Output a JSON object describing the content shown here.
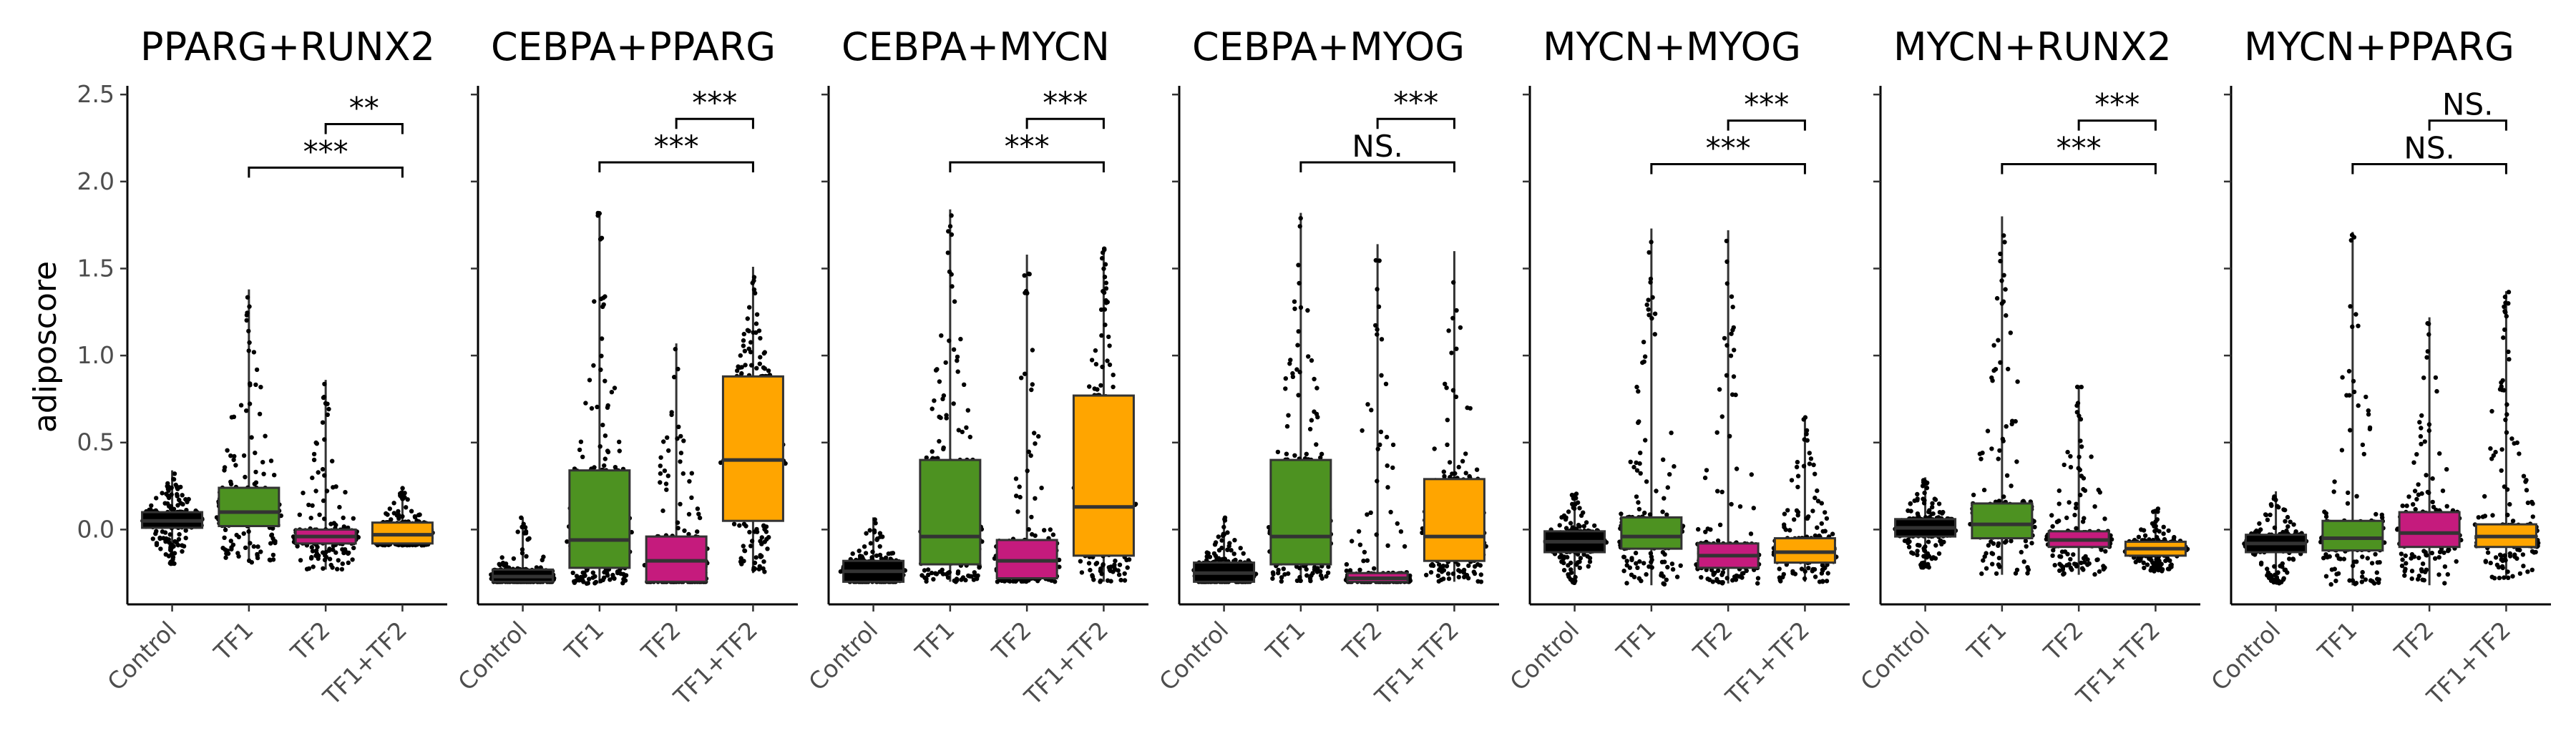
{
  "chart_data": {
    "type": "box",
    "ylabel": "adiposcore",
    "ylim": [
      -0.43,
      2.55
    ],
    "yticks": [
      "0.0",
      "0.5",
      "1.0",
      "1.5",
      "2.0",
      "2.5"
    ],
    "ytick_values": [
      0.0,
      0.5,
      1.0,
      1.5,
      2.0,
      2.5
    ],
    "categories": [
      "Control",
      "TF1",
      "TF2",
      "TF1+TF2"
    ],
    "colors": {
      "Control": "#000000",
      "TF1": "#4d9221",
      "TF2": "#c51b7d",
      "TF1+TF2": "#ffa500"
    },
    "panels": [
      {
        "title": "PPARG+RUNX2",
        "boxes": [
          {
            "category": "Control",
            "q1": 0.01,
            "median": 0.05,
            "q3": 0.1,
            "min": -0.2,
            "max": 0.34
          },
          {
            "category": "TF1",
            "q1": 0.02,
            "median": 0.1,
            "q3": 0.24,
            "min": -0.19,
            "max": 1.38
          },
          {
            "category": "TF2",
            "q1": -0.08,
            "median": -0.04,
            "q3": 0.0,
            "min": -0.23,
            "max": 0.86
          },
          {
            "category": "TF1+TF2",
            "q1": -0.08,
            "median": -0.03,
            "q3": 0.04,
            "min": -0.09,
            "max": 0.25
          }
        ],
        "comparisons": [
          {
            "from": "TF2",
            "to": "TF1+TF2",
            "y": 2.33,
            "label": "**"
          },
          {
            "from": "TF1",
            "to": "TF1+TF2",
            "y": 2.08,
            "label": "***"
          }
        ]
      },
      {
        "title": "CEBPA+PPARG",
        "boxes": [
          {
            "category": "Control",
            "q1": -0.3,
            "median": -0.27,
            "q3": -0.23,
            "min": -0.3,
            "max": 0.07
          },
          {
            "category": "TF1",
            "q1": -0.22,
            "median": -0.06,
            "q3": 0.34,
            "min": -0.31,
            "max": 1.83
          },
          {
            "category": "TF2",
            "q1": -0.3,
            "median": -0.18,
            "q3": -0.04,
            "min": -0.3,
            "max": 1.07
          },
          {
            "category": "TF1+TF2",
            "q1": 0.05,
            "median": 0.4,
            "q3": 0.88,
            "min": -0.25,
            "max": 1.51
          }
        ],
        "comparisons": [
          {
            "from": "TF2",
            "to": "TF1+TF2",
            "y": 2.36,
            "label": "***"
          },
          {
            "from": "TF1",
            "to": "TF1+TF2",
            "y": 2.11,
            "label": "***"
          }
        ]
      },
      {
        "title": "CEBPA+MYCN",
        "boxes": [
          {
            "category": "Control",
            "q1": -0.3,
            "median": -0.24,
            "q3": -0.18,
            "min": -0.3,
            "max": 0.07
          },
          {
            "category": "TF1",
            "q1": -0.2,
            "median": -0.04,
            "q3": 0.4,
            "min": -0.3,
            "max": 1.84
          },
          {
            "category": "TF2",
            "q1": -0.28,
            "median": -0.18,
            "q3": -0.06,
            "min": -0.3,
            "max": 1.58
          },
          {
            "category": "TF1+TF2",
            "q1": -0.15,
            "median": 0.13,
            "q3": 0.77,
            "min": -0.3,
            "max": 1.62
          }
        ],
        "comparisons": [
          {
            "from": "TF2",
            "to": "TF1+TF2",
            "y": 2.36,
            "label": "***"
          },
          {
            "from": "TF1",
            "to": "TF1+TF2",
            "y": 2.11,
            "label": "***"
          }
        ]
      },
      {
        "title": "CEBPA+MYOG",
        "boxes": [
          {
            "category": "Control",
            "q1": -0.3,
            "median": -0.25,
            "q3": -0.19,
            "min": -0.3,
            "max": 0.07
          },
          {
            "category": "TF1",
            "q1": -0.2,
            "median": -0.04,
            "q3": 0.4,
            "min": -0.3,
            "max": 1.82
          },
          {
            "category": "TF2",
            "q1": -0.3,
            "median": -0.28,
            "q3": -0.25,
            "min": -0.3,
            "max": 1.64
          },
          {
            "category": "TF1+TF2",
            "q1": -0.18,
            "median": -0.04,
            "q3": 0.29,
            "min": -0.3,
            "max": 1.6
          }
        ],
        "comparisons": [
          {
            "from": "TF2",
            "to": "TF1+TF2",
            "y": 2.36,
            "label": "***"
          },
          {
            "from": "TF1",
            "to": "TF1+TF2",
            "y": 2.11,
            "label": "NS."
          }
        ]
      },
      {
        "title": "MYCN+MYOG",
        "boxes": [
          {
            "category": "Control",
            "q1": -0.13,
            "median": -0.07,
            "q3": -0.01,
            "min": -0.31,
            "max": 0.21
          },
          {
            "category": "TF1",
            "q1": -0.11,
            "median": -0.04,
            "q3": 0.07,
            "min": -0.32,
            "max": 1.73
          },
          {
            "category": "TF2",
            "q1": -0.22,
            "median": -0.15,
            "q3": -0.08,
            "min": -0.31,
            "max": 1.72
          },
          {
            "category": "TF1+TF2",
            "q1": -0.19,
            "median": -0.13,
            "q3": -0.05,
            "min": -0.3,
            "max": 0.65
          }
        ],
        "comparisons": [
          {
            "from": "TF2",
            "to": "TF1+TF2",
            "y": 2.35,
            "label": "***"
          },
          {
            "from": "TF1",
            "to": "TF1+TF2",
            "y": 2.1,
            "label": "***"
          }
        ]
      },
      {
        "title": "MYCN+RUNX2",
        "boxes": [
          {
            "category": "Control",
            "q1": -0.04,
            "median": 0.01,
            "q3": 0.06,
            "min": -0.22,
            "max": 0.3
          },
          {
            "category": "TF1",
            "q1": -0.05,
            "median": 0.03,
            "q3": 0.15,
            "min": -0.26,
            "max": 1.8
          },
          {
            "category": "TF2",
            "q1": -0.1,
            "median": -0.06,
            "q3": -0.01,
            "min": -0.26,
            "max": 0.83
          },
          {
            "category": "TF1+TF2",
            "q1": -0.15,
            "median": -0.11,
            "q3": -0.07,
            "min": -0.24,
            "max": 0.12
          }
        ],
        "comparisons": [
          {
            "from": "TF2",
            "to": "TF1+TF2",
            "y": 2.35,
            "label": "***"
          },
          {
            "from": "TF1",
            "to": "TF1+TF2",
            "y": 2.1,
            "label": "***"
          }
        ]
      },
      {
        "title": "MYCN+PPARG",
        "boxes": [
          {
            "category": "Control",
            "q1": -0.13,
            "median": -0.08,
            "q3": -0.03,
            "min": -0.31,
            "max": 0.22
          },
          {
            "category": "TF1",
            "q1": -0.12,
            "median": -0.05,
            "q3": 0.05,
            "min": -0.32,
            "max": 1.71
          },
          {
            "category": "TF2",
            "q1": -0.1,
            "median": -0.02,
            "q3": 0.1,
            "min": -0.32,
            "max": 1.22
          },
          {
            "category": "TF1+TF2",
            "q1": -0.1,
            "median": -0.04,
            "q3": 0.03,
            "min": -0.28,
            "max": 1.37
          }
        ],
        "comparisons": [
          {
            "from": "TF2",
            "to": "TF1+TF2",
            "y": 2.35,
            "label": "NS."
          },
          {
            "from": "TF1",
            "to": "TF1+TF2",
            "y": 2.1,
            "label": "NS."
          }
        ]
      }
    ]
  }
}
